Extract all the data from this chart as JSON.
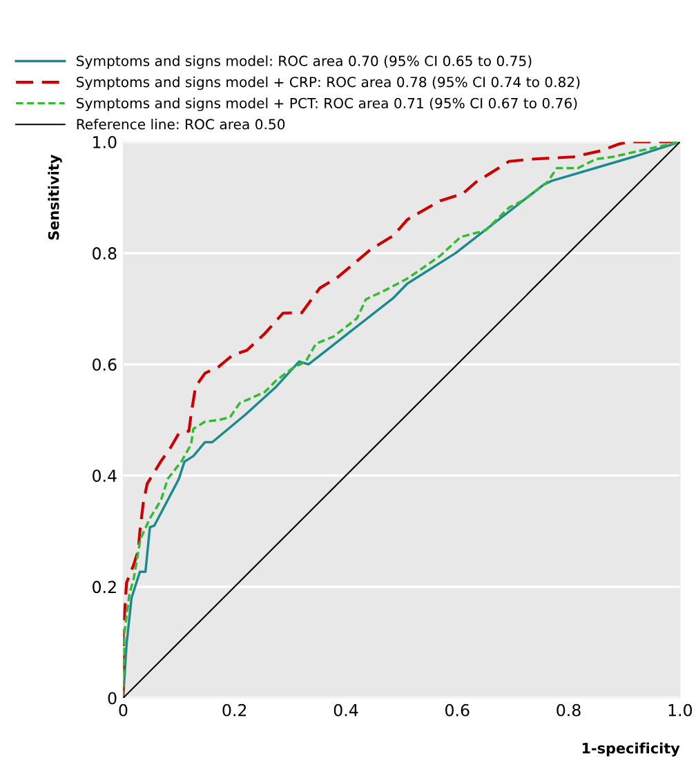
{
  "chart_data": {
    "type": "line",
    "xlabel": "1-specificity",
    "ylabel": "Sensitivity",
    "xlim": [
      0,
      1
    ],
    "ylim": [
      0,
      1
    ],
    "xticks": [
      0,
      0.2,
      0.4,
      0.6,
      0.8,
      {
        "value": 1,
        "label": "1.0"
      }
    ],
    "yticks": [
      0,
      0.2,
      0.4,
      0.6,
      0.8,
      {
        "value": 1,
        "label": "1.0"
      }
    ],
    "grid": "y",
    "legend": "top",
    "marker": "none",
    "series": [
      {
        "name": "Symptoms and signs model: ROC area 0.70 (95% CI 0.65 to 0.75)",
        "color": "#1a8a8f",
        "line_style": "solid",
        "x": [
          0,
          0.006,
          0.015,
          0.03,
          0.04,
          0.048,
          0.056,
          0.1,
          0.11,
          0.126,
          0.147,
          0.16,
          0.22,
          0.275,
          0.316,
          0.333,
          0.486,
          0.51,
          0.597,
          0.755,
          0.77,
          0.916,
          1
        ],
        "values": [
          0,
          0.096,
          0.18,
          0.227,
          0.227,
          0.307,
          0.31,
          0.394,
          0.425,
          0.435,
          0.46,
          0.46,
          0.51,
          0.56,
          0.605,
          0.6,
          0.72,
          0.745,
          0.8,
          0.923,
          0.93,
          0.973,
          1
        ]
      },
      {
        "name": "Symptoms and signs model + CRP: ROC area 0.78 (95% CI 0.74 to 0.82)",
        "color": "#cc0000",
        "line_style": "dashed",
        "x": [
          0,
          0,
          0,
          0.006,
          0.019,
          0.027,
          0.03,
          0.036,
          0.043,
          0.068,
          0.085,
          0.1,
          0.118,
          0.122,
          0.13,
          0.147,
          0.172,
          0.197,
          0.222,
          0.254,
          0.287,
          0.321,
          0.353,
          0.387,
          0.445,
          0.486,
          0.51,
          0.527,
          0.569,
          0.61,
          0.634,
          0.66,
          0.693,
          0.734,
          0.808,
          0.858,
          0.89,
          0.907,
          1
        ],
        "values": [
          0,
          0.012,
          0.115,
          0.207,
          0.24,
          0.265,
          0.3,
          0.35,
          0.385,
          0.426,
          0.45,
          0.476,
          0.48,
          0.51,
          0.56,
          0.584,
          0.596,
          0.617,
          0.625,
          0.655,
          0.692,
          0.693,
          0.737,
          0.758,
          0.807,
          0.832,
          0.86,
          0.87,
          0.894,
          0.907,
          0.928,
          0.944,
          0.965,
          0.969,
          0.973,
          0.984,
          0.996,
          1,
          1
        ]
      },
      {
        "name": "Symptoms and signs model + PCT: ROC area 0.71 (95% CI 0.67 to 0.76)",
        "color": "#33bb33",
        "line_style": "dotted",
        "x": [
          0,
          0,
          0.002,
          0.011,
          0.019,
          0.031,
          0.048,
          0.068,
          0.08,
          0.105,
          0.122,
          0.126,
          0.147,
          0.172,
          0.192,
          0.209,
          0.254,
          0.275,
          0.304,
          0.328,
          0.346,
          0.378,
          0.42,
          0.436,
          0.47,
          0.51,
          0.539,
          0.569,
          0.606,
          0.651,
          0.693,
          0.717,
          0.762,
          0.779,
          0.817,
          0.849,
          0.879,
          0.932,
          1
        ],
        "values": [
          0,
          0.01,
          0.115,
          0.186,
          0.215,
          0.286,
          0.323,
          0.356,
          0.394,
          0.426,
          0.456,
          0.484,
          0.497,
          0.5,
          0.505,
          0.53,
          0.55,
          0.571,
          0.593,
          0.605,
          0.637,
          0.65,
          0.683,
          0.717,
          0.733,
          0.754,
          0.774,
          0.795,
          0.829,
          0.841,
          0.882,
          0.894,
          0.928,
          0.953,
          0.953,
          0.969,
          0.973,
          0.985,
          1
        ]
      },
      {
        "name": "Reference line: ROC area 0.50",
        "color": "#000000",
        "line_style": "solid",
        "x": [
          0,
          1
        ],
        "values": [
          0,
          1
        ]
      }
    ]
  }
}
